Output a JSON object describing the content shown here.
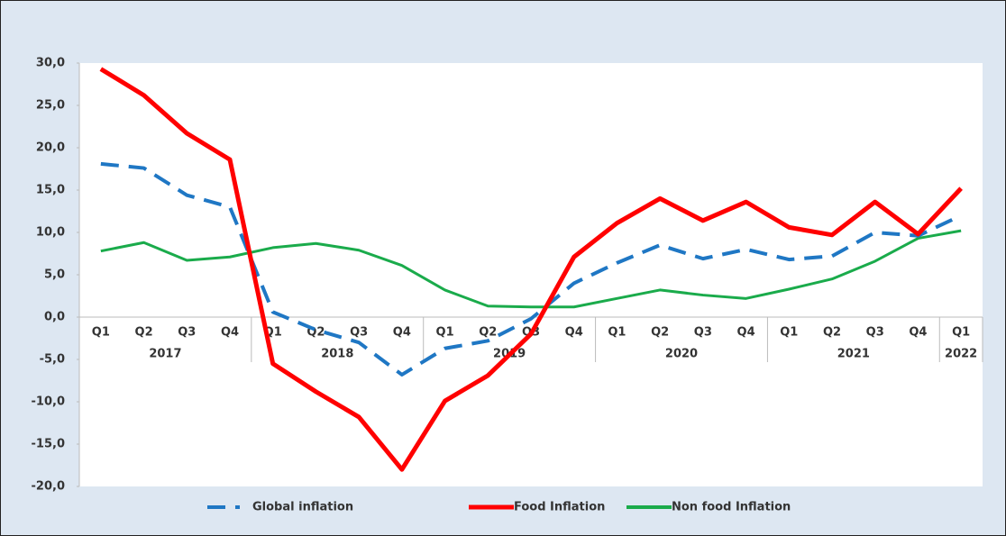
{
  "chart_data": {
    "type": "line",
    "categories": [
      "Q1",
      "Q2",
      "Q3",
      "Q4",
      "Q1",
      "Q2",
      "Q3",
      "Q4",
      "Q1",
      "Q2",
      "Q3",
      "Q4",
      "Q1",
      "Q2",
      "Q3",
      "Q4",
      "Q1",
      "Q2",
      "Q3",
      "Q4",
      "Q1"
    ],
    "category_groups": [
      "2017",
      "2017",
      "2017",
      "2017",
      "2018",
      "2018",
      "2018",
      "2018",
      "2019",
      "2019",
      "2019",
      "2019",
      "2020",
      "2020",
      "2020",
      "2020",
      "2021",
      "2021",
      "2021",
      "2021",
      "2022"
    ],
    "series": [
      {
        "name": "Global inflation",
        "color": "#1f77c4",
        "dashed": true,
        "values": [
          18.1,
          17.6,
          14.4,
          13.0,
          0.6,
          -1.5,
          -3.0,
          -6.8,
          -3.7,
          -2.8,
          -0.2,
          4.0,
          6.4,
          8.5,
          6.9,
          8.0,
          6.8,
          7.2,
          10.0,
          9.6,
          12.0
        ]
      },
      {
        "name": "Food Inflation",
        "color": "#ff0000",
        "dashed": false,
        "values": [
          29.3,
          26.2,
          21.7,
          18.6,
          -5.5,
          -8.8,
          -11.8,
          -18.0,
          -9.9,
          -6.9,
          -2.0,
          7.1,
          11.1,
          14.0,
          11.4,
          13.6,
          10.6,
          9.7,
          13.6,
          9.8,
          15.2
        ]
      },
      {
        "name": "Non food Inflation",
        "color": "#1aab4b",
        "dashed": false,
        "values": [
          7.8,
          8.8,
          6.7,
          7.1,
          8.2,
          8.7,
          7.9,
          6.1,
          3.2,
          1.3,
          1.2,
          1.2,
          2.2,
          3.2,
          2.6,
          2.2,
          3.3,
          4.5,
          6.6,
          9.3,
          10.2
        ]
      }
    ],
    "ylim": [
      -20,
      30
    ],
    "yticks": [
      {
        "value": -20,
        "label": "-20,0"
      },
      {
        "value": -15,
        "label": "-15,0"
      },
      {
        "value": -10,
        "label": "-10,0"
      },
      {
        "value": -5,
        "label": "-5,0"
      },
      {
        "value": 0,
        "label": "0,0"
      },
      {
        "value": 5,
        "label": "5,0"
      },
      {
        "value": 10,
        "label": "10,0"
      },
      {
        "value": 15,
        "label": "15,0"
      },
      {
        "value": 20,
        "label": "20,0"
      },
      {
        "value": 25,
        "label": "25,0"
      },
      {
        "value": 30,
        "label": "30,0"
      }
    ],
    "grid": false,
    "legend": "bottom"
  }
}
